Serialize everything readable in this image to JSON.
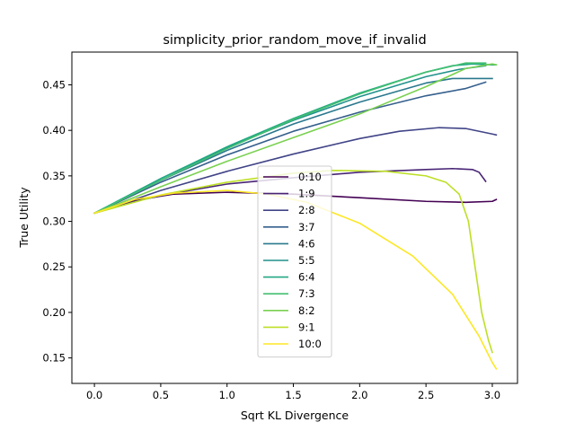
{
  "chart_data": {
    "type": "line",
    "title": "simplicity_prior_random_move_if_invalid",
    "xlabel": "Sqrt KL Divergence",
    "ylabel": "True Utility",
    "xlim": [
      -0.17,
      3.19
    ],
    "ylim": [
      0.122,
      0.486
    ],
    "xticks": [
      0.0,
      0.5,
      1.0,
      1.5,
      2.0,
      2.5,
      3.0
    ],
    "xtick_labels": [
      "0.0",
      "0.5",
      "1.0",
      "1.5",
      "2.0",
      "2.5",
      "3.0"
    ],
    "yticks": [
      0.15,
      0.2,
      0.25,
      0.3,
      0.35,
      0.4,
      0.45
    ],
    "ytick_labels": [
      "0.15",
      "0.20",
      "0.25",
      "0.30",
      "0.35",
      "0.40",
      "0.45"
    ],
    "grid": false,
    "legend_position": "center",
    "series": [
      {
        "name": "0:10",
        "color": "#440154",
        "x": [
          0.0,
          0.3,
          0.6,
          1.0,
          1.5,
          2.0,
          2.5,
          2.8,
          3.0,
          3.03
        ],
        "y": [
          0.309,
          0.323,
          0.33,
          0.332,
          0.33,
          0.326,
          0.322,
          0.321,
          0.322,
          0.324
        ]
      },
      {
        "name": "1:9",
        "color": "#482475",
        "x": [
          0.0,
          0.3,
          0.6,
          1.0,
          1.5,
          2.0,
          2.5,
          2.7,
          2.85,
          2.9,
          2.95
        ],
        "y": [
          0.309,
          0.322,
          0.331,
          0.341,
          0.348,
          0.354,
          0.357,
          0.358,
          0.357,
          0.354,
          0.344
        ]
      },
      {
        "name": "2:8",
        "color": "#414487",
        "x": [
          0.0,
          0.5,
          1.0,
          1.5,
          2.0,
          2.3,
          2.6,
          2.8,
          3.0,
          3.03
        ],
        "y": [
          0.309,
          0.334,
          0.355,
          0.374,
          0.391,
          0.399,
          0.403,
          0.402,
          0.396,
          0.395
        ]
      },
      {
        "name": "3:7",
        "color": "#355f8d",
        "x": [
          0.0,
          0.5,
          1.0,
          1.5,
          2.0,
          2.5,
          2.8,
          2.95
        ],
        "y": [
          0.309,
          0.343,
          0.373,
          0.399,
          0.42,
          0.438,
          0.446,
          0.453
        ]
      },
      {
        "name": "4:6",
        "color": "#2a788e",
        "x": [
          0.0,
          0.5,
          1.0,
          1.5,
          2.0,
          2.5,
          2.7,
          2.85,
          3.0
        ],
        "y": [
          0.309,
          0.345,
          0.378,
          0.407,
          0.431,
          0.452,
          0.457,
          0.457,
          0.457
        ]
      },
      {
        "name": "5:5",
        "color": "#21918c",
        "x": [
          0.0,
          0.5,
          1.0,
          1.5,
          2.0,
          2.5,
          2.75,
          2.95
        ],
        "y": [
          0.309,
          0.347,
          0.381,
          0.411,
          0.437,
          0.459,
          0.467,
          0.471
        ]
      },
      {
        "name": "6:4",
        "color": "#22a884",
        "x": [
          0.0,
          0.5,
          1.0,
          1.5,
          2.0,
          2.5,
          2.7,
          2.85,
          3.0,
          3.03
        ],
        "y": [
          0.309,
          0.347,
          0.382,
          0.413,
          0.441,
          0.464,
          0.471,
          0.473,
          0.472,
          0.472
        ]
      },
      {
        "name": "7:3",
        "color": "#44bf70",
        "x": [
          0.0,
          0.5,
          1.0,
          1.5,
          2.0,
          2.5,
          2.8,
          2.95
        ],
        "y": [
          0.309,
          0.345,
          0.38,
          0.412,
          0.44,
          0.464,
          0.474,
          0.474
        ]
      },
      {
        "name": "8:2",
        "color": "#7ad151",
        "x": [
          0.0,
          0.5,
          1.0,
          1.5,
          2.0,
          2.5,
          2.8,
          3.0,
          3.03
        ],
        "y": [
          0.309,
          0.338,
          0.366,
          0.392,
          0.418,
          0.448,
          0.468,
          0.473,
          0.472
        ]
      },
      {
        "name": "9:1",
        "color": "#bddf26",
        "x": [
          0.0,
          0.5,
          1.0,
          1.5,
          1.8,
          2.2,
          2.5,
          2.65,
          2.75,
          2.82,
          2.87,
          2.92,
          2.97,
          3.0
        ],
        "y": [
          0.309,
          0.329,
          0.343,
          0.353,
          0.356,
          0.355,
          0.35,
          0.343,
          0.33,
          0.3,
          0.25,
          0.2,
          0.17,
          0.156
        ]
      },
      {
        "name": "10:0",
        "color": "#fde725",
        "x": [
          0.0,
          0.3,
          0.6,
          1.0,
          1.3,
          1.6,
          2.0,
          2.4,
          2.7,
          2.9,
          3.0,
          3.03
        ],
        "y": [
          0.309,
          0.324,
          0.331,
          0.334,
          0.33,
          0.321,
          0.298,
          0.262,
          0.22,
          0.174,
          0.145,
          0.138
        ]
      }
    ]
  }
}
